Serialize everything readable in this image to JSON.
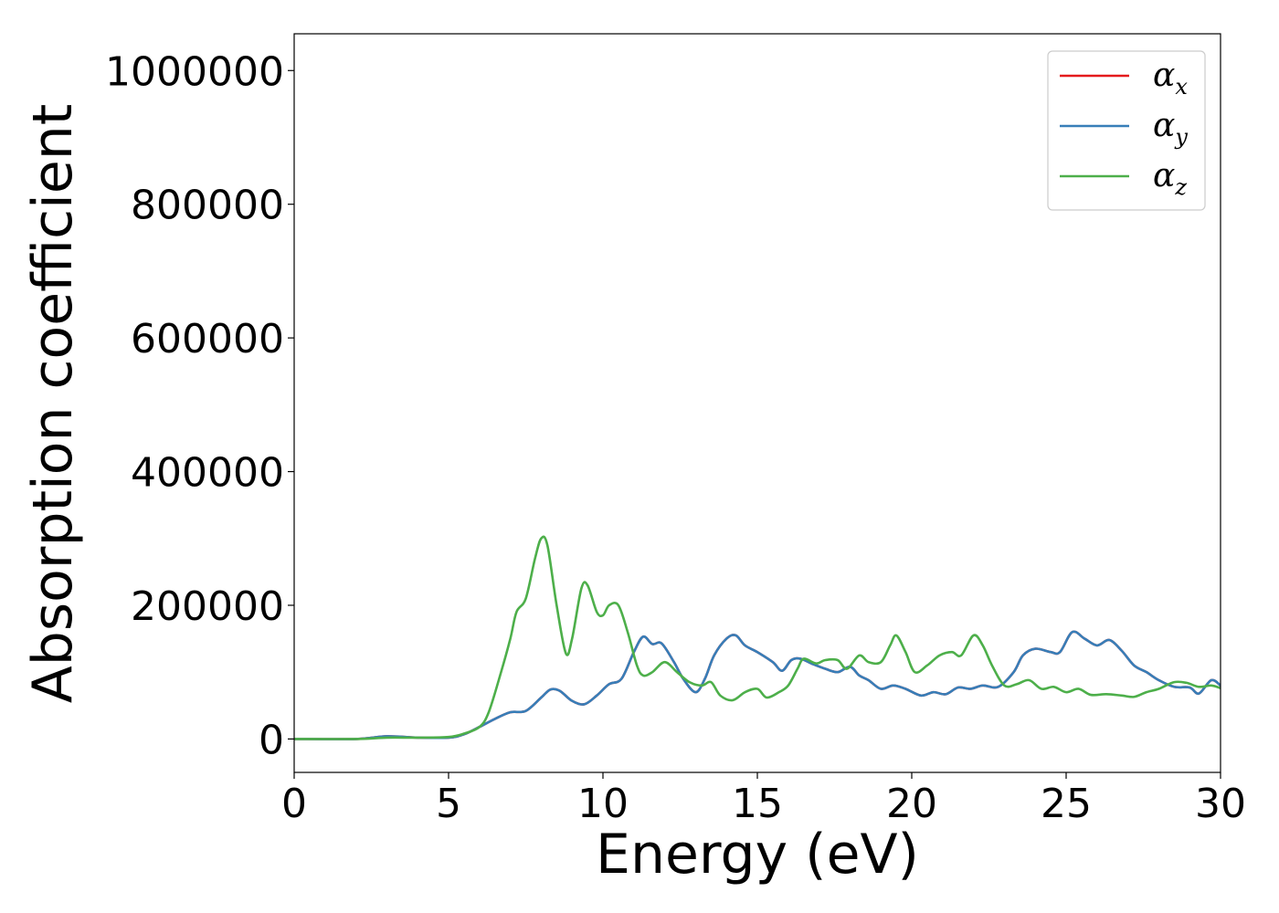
{
  "chart_data": {
    "type": "line",
    "title": "",
    "xlabel": "Energy (eV)",
    "ylabel": "Absorption coefficient",
    "xlim": [
      0,
      30
    ],
    "ylim": [
      -50000,
      1055000
    ],
    "xticks": [
      0,
      5,
      10,
      15,
      20,
      25,
      30
    ],
    "yticks": [
      0,
      200000,
      400000,
      600000,
      800000,
      1000000
    ],
    "grid": false,
    "legend_position": "top-right",
    "series": [
      {
        "name": "α_x",
        "label_base": "α",
        "label_sub": "x",
        "color": "#e41a1c",
        "points": [
          [
            0,
            0
          ],
          [
            2,
            0
          ],
          [
            3,
            4000
          ],
          [
            4,
            2000
          ],
          [
            5,
            2000
          ],
          [
            5.5,
            7000
          ],
          [
            6,
            18000
          ],
          [
            6.5,
            30000
          ],
          [
            7,
            40000
          ],
          [
            7.5,
            42000
          ],
          [
            8,
            62000
          ],
          [
            8.3,
            74000
          ],
          [
            8.6,
            72000
          ],
          [
            9,
            57000
          ],
          [
            9.4,
            52000
          ],
          [
            9.8,
            65000
          ],
          [
            10.2,
            82000
          ],
          [
            10.6,
            90000
          ],
          [
            11,
            130000
          ],
          [
            11.3,
            153000
          ],
          [
            11.6,
            142000
          ],
          [
            11.9,
            143000
          ],
          [
            12.3,
            115000
          ],
          [
            12.6,
            90000
          ],
          [
            13,
            70000
          ],
          [
            13.3,
            90000
          ],
          [
            13.6,
            125000
          ],
          [
            14,
            150000
          ],
          [
            14.3,
            155000
          ],
          [
            14.6,
            140000
          ],
          [
            15,
            130000
          ],
          [
            15.5,
            115000
          ],
          [
            15.8,
            102000
          ],
          [
            16.1,
            118000
          ],
          [
            16.4,
            120000
          ],
          [
            16.8,
            112000
          ],
          [
            17.2,
            105000
          ],
          [
            17.6,
            100000
          ],
          [
            18,
            108000
          ],
          [
            18.3,
            95000
          ],
          [
            18.6,
            88000
          ],
          [
            19,
            75000
          ],
          [
            19.4,
            80000
          ],
          [
            19.8,
            75000
          ],
          [
            20.3,
            65000
          ],
          [
            20.7,
            70000
          ],
          [
            21.1,
            67000
          ],
          [
            21.5,
            77000
          ],
          [
            21.9,
            75000
          ],
          [
            22.3,
            80000
          ],
          [
            22.8,
            78000
          ],
          [
            23.3,
            100000
          ],
          [
            23.6,
            125000
          ],
          [
            24,
            135000
          ],
          [
            24.5,
            130000
          ],
          [
            24.8,
            130000
          ],
          [
            25.2,
            160000
          ],
          [
            25.6,
            150000
          ],
          [
            26,
            140000
          ],
          [
            26.4,
            148000
          ],
          [
            26.8,
            132000
          ],
          [
            27.2,
            110000
          ],
          [
            27.6,
            100000
          ],
          [
            28,
            88000
          ],
          [
            28.5,
            78000
          ],
          [
            29,
            77000
          ],
          [
            29.3,
            68000
          ],
          [
            29.7,
            88000
          ],
          [
            30,
            80000
          ]
        ]
      },
      {
        "name": "α_y",
        "label_base": "α",
        "label_sub": "y",
        "color": "#377eb8",
        "points": [
          [
            0,
            0
          ],
          [
            2,
            0
          ],
          [
            3,
            4000
          ],
          [
            4,
            2000
          ],
          [
            5,
            2000
          ],
          [
            5.5,
            7000
          ],
          [
            6,
            18000
          ],
          [
            6.5,
            30000
          ],
          [
            7,
            40000
          ],
          [
            7.5,
            42000
          ],
          [
            8,
            62000
          ],
          [
            8.3,
            74000
          ],
          [
            8.6,
            72000
          ],
          [
            9,
            57000
          ],
          [
            9.4,
            52000
          ],
          [
            9.8,
            65000
          ],
          [
            10.2,
            82000
          ],
          [
            10.6,
            90000
          ],
          [
            11,
            130000
          ],
          [
            11.3,
            153000
          ],
          [
            11.6,
            142000
          ],
          [
            11.9,
            143000
          ],
          [
            12.3,
            115000
          ],
          [
            12.6,
            90000
          ],
          [
            13,
            70000
          ],
          [
            13.3,
            90000
          ],
          [
            13.6,
            125000
          ],
          [
            14,
            150000
          ],
          [
            14.3,
            155000
          ],
          [
            14.6,
            140000
          ],
          [
            15,
            130000
          ],
          [
            15.5,
            115000
          ],
          [
            15.8,
            102000
          ],
          [
            16.1,
            118000
          ],
          [
            16.4,
            120000
          ],
          [
            16.8,
            112000
          ],
          [
            17.2,
            105000
          ],
          [
            17.6,
            100000
          ],
          [
            18,
            108000
          ],
          [
            18.3,
            95000
          ],
          [
            18.6,
            88000
          ],
          [
            19,
            75000
          ],
          [
            19.4,
            80000
          ],
          [
            19.8,
            75000
          ],
          [
            20.3,
            65000
          ],
          [
            20.7,
            70000
          ],
          [
            21.1,
            67000
          ],
          [
            21.5,
            77000
          ],
          [
            21.9,
            75000
          ],
          [
            22.3,
            80000
          ],
          [
            22.8,
            78000
          ],
          [
            23.3,
            100000
          ],
          [
            23.6,
            125000
          ],
          [
            24,
            135000
          ],
          [
            24.5,
            130000
          ],
          [
            24.8,
            130000
          ],
          [
            25.2,
            160000
          ],
          [
            25.6,
            150000
          ],
          [
            26,
            140000
          ],
          [
            26.4,
            148000
          ],
          [
            26.8,
            132000
          ],
          [
            27.2,
            110000
          ],
          [
            27.6,
            100000
          ],
          [
            28,
            88000
          ],
          [
            28.5,
            78000
          ],
          [
            29,
            77000
          ],
          [
            29.3,
            68000
          ],
          [
            29.7,
            88000
          ],
          [
            30,
            80000
          ]
        ]
      },
      {
        "name": "α_z",
        "label_base": "α",
        "label_sub": "z",
        "color": "#4daf4a",
        "points": [
          [
            0,
            0
          ],
          [
            2,
            0
          ],
          [
            3,
            2000
          ],
          [
            4,
            2000
          ],
          [
            5,
            3000
          ],
          [
            5.5,
            8000
          ],
          [
            6,
            18000
          ],
          [
            6.3,
            40000
          ],
          [
            6.7,
            100000
          ],
          [
            7,
            150000
          ],
          [
            7.2,
            190000
          ],
          [
            7.5,
            210000
          ],
          [
            7.8,
            270000
          ],
          [
            8,
            300000
          ],
          [
            8.2,
            290000
          ],
          [
            8.5,
            200000
          ],
          [
            8.8,
            128000
          ],
          [
            9,
            150000
          ],
          [
            9.3,
            225000
          ],
          [
            9.5,
            230000
          ],
          [
            9.8,
            190000
          ],
          [
            10,
            185000
          ],
          [
            10.2,
            200000
          ],
          [
            10.5,
            200000
          ],
          [
            10.8,
            160000
          ],
          [
            11.1,
            110000
          ],
          [
            11.3,
            95000
          ],
          [
            11.6,
            100000
          ],
          [
            12,
            115000
          ],
          [
            12.4,
            100000
          ],
          [
            12.8,
            85000
          ],
          [
            13.2,
            80000
          ],
          [
            13.5,
            85000
          ],
          [
            13.8,
            65000
          ],
          [
            14.2,
            58000
          ],
          [
            14.6,
            70000
          ],
          [
            15,
            75000
          ],
          [
            15.3,
            62000
          ],
          [
            15.7,
            70000
          ],
          [
            16,
            80000
          ],
          [
            16.3,
            105000
          ],
          [
            16.5,
            120000
          ],
          [
            16.9,
            113000
          ],
          [
            17.2,
            118000
          ],
          [
            17.6,
            118000
          ],
          [
            17.9,
            105000
          ],
          [
            18.3,
            125000
          ],
          [
            18.6,
            115000
          ],
          [
            19,
            115000
          ],
          [
            19.3,
            140000
          ],
          [
            19.5,
            155000
          ],
          [
            19.8,
            130000
          ],
          [
            20.1,
            100000
          ],
          [
            20.5,
            110000
          ],
          [
            20.9,
            125000
          ],
          [
            21.3,
            130000
          ],
          [
            21.6,
            125000
          ],
          [
            22,
            155000
          ],
          [
            22.3,
            140000
          ],
          [
            22.6,
            110000
          ],
          [
            23,
            80000
          ],
          [
            23.4,
            82000
          ],
          [
            23.8,
            88000
          ],
          [
            24.2,
            75000
          ],
          [
            24.6,
            78000
          ],
          [
            25,
            70000
          ],
          [
            25.4,
            75000
          ],
          [
            25.8,
            66000
          ],
          [
            26.3,
            67000
          ],
          [
            26.8,
            65000
          ],
          [
            27.2,
            63000
          ],
          [
            27.6,
            70000
          ],
          [
            28,
            75000
          ],
          [
            28.5,
            85000
          ],
          [
            28.9,
            84000
          ],
          [
            29.3,
            78000
          ],
          [
            29.7,
            80000
          ],
          [
            30,
            76000
          ]
        ]
      }
    ]
  }
}
